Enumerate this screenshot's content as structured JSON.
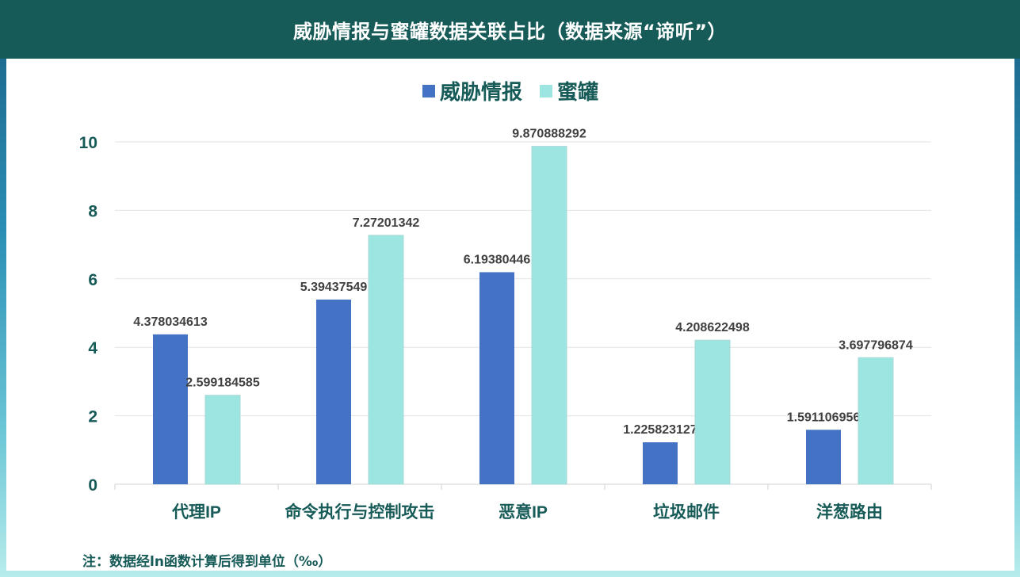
{
  "header": {
    "title": "威胁情报与蜜罐数据关联占比（数据来源“谛听”）"
  },
  "footnote": "注：数据经ln函数计算后得到单位（‰）",
  "colors": {
    "header_bg": "#175b58",
    "series1": "#4472c4",
    "series2": "#9de5e1",
    "text": "#175b58"
  },
  "chart_data": {
    "type": "bar",
    "categories": [
      "代理IP",
      "命令执行与控制攻击",
      "恶意IP",
      "垃圾邮件",
      "洋葱路由"
    ],
    "series": [
      {
        "name": "威胁情报",
        "values": [
          4.378034613,
          5.39437549,
          6.19380446,
          1.225823127,
          1.591106956
        ],
        "labels": [
          "4.378034613",
          "5.39437549",
          "6.19380446",
          "1.225823127",
          "1.591106956"
        ]
      },
      {
        "name": "蜜罐",
        "values": [
          2.599184585,
          7.27201342,
          9.870888292,
          4.208622498,
          3.697796874
        ],
        "labels": [
          "2.599184585",
          "7.27201342",
          "9.870888292",
          "4.208622498",
          "3.697796874"
        ]
      }
    ],
    "yticks": [
      "0",
      "2",
      "4",
      "6",
      "8",
      "10"
    ],
    "ylim": [
      0,
      10
    ],
    "legend": "top-center",
    "grid": true
  }
}
